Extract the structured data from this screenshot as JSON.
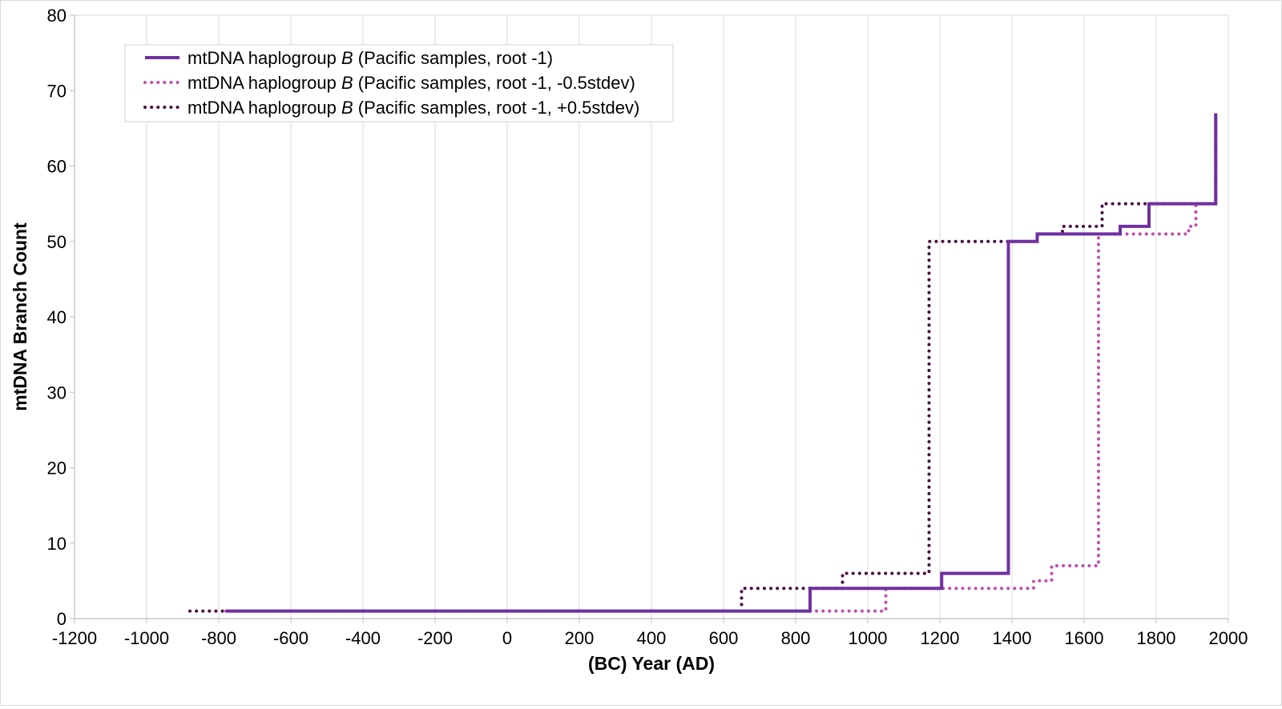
{
  "chart_data": {
    "type": "line",
    "step": true,
    "xlabel": "(BC) Year (AD)",
    "ylabel": "mtDNA Branch Count",
    "xlim": [
      -1200,
      2000
    ],
    "ylim": [
      0,
      80
    ],
    "x_ticks": [
      -1200,
      -1000,
      -800,
      -600,
      -400,
      -200,
      0,
      200,
      400,
      600,
      800,
      1000,
      1200,
      1400,
      1600,
      1800,
      2000
    ],
    "y_ticks": [
      0,
      10,
      20,
      30,
      40,
      50,
      60,
      70,
      80
    ],
    "grid": "vertical",
    "legend_position": "top-left",
    "legend": {
      "prefix": "mtDNA haplogroup ",
      "italic": "B"
    },
    "series": [
      {
        "name": "mtDNA haplogroup B (Pacific samples, root -1)",
        "legend_suffix": " (Pacific samples, root -1)",
        "color": "#7030a0",
        "style": "solid",
        "x": [
          -780,
          840,
          1205,
          1390,
          1470,
          1700,
          1780,
          1965,
          1965
        ],
        "y": [
          1,
          4,
          6,
          50,
          51,
          52,
          55,
          55,
          67
        ]
      },
      {
        "name": "mtDNA haplogroup B (Pacific samples, root -1, -0.5stdev)",
        "legend_suffix": " (Pacific samples, root -1, -0.5stdev)",
        "color": "#c050b0",
        "style": "dotted",
        "x": [
          -780,
          1050,
          1460,
          1510,
          1640,
          1890,
          1910,
          1965,
          1965
        ],
        "y": [
          1,
          4,
          5,
          7,
          51,
          52,
          55,
          55,
          67
        ]
      },
      {
        "name": "mtDNA haplogroup B (Pacific samples, root -1, +0.5stdev)",
        "legend_suffix": " (Pacific samples, root -1, +0.5stdev)",
        "color": "#4a1040",
        "style": "dotted",
        "x": [
          -880,
          650,
          930,
          1170,
          1470,
          1540,
          1650,
          1965,
          1965
        ],
        "y": [
          1,
          4,
          6,
          50,
          51,
          52,
          55,
          55,
          67
        ]
      }
    ]
  }
}
